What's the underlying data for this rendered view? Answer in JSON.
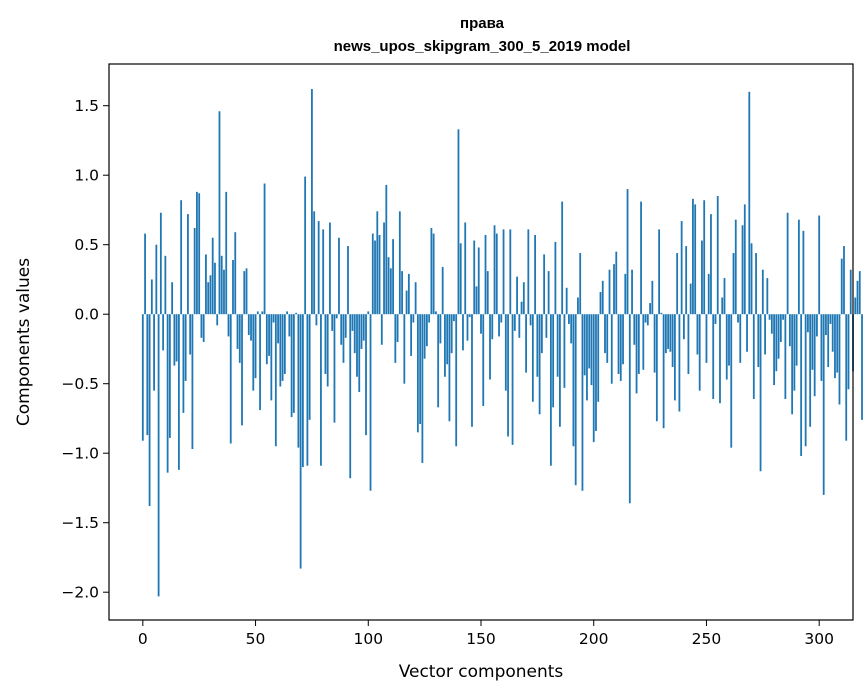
{
  "chart_data": {
    "type": "bar",
    "title": "права",
    "subtitle": "news_upos_skipgram_300_5_2019 model",
    "xlabel": "Vector components",
    "ylabel": "Components values",
    "xlim": [
      -15,
      315
    ],
    "ylim": [
      -2.2,
      1.8
    ],
    "xticks": [
      0,
      50,
      100,
      150,
      200,
      250,
      300
    ],
    "yticks": [
      -2.0,
      -1.5,
      -1.0,
      -0.5,
      0.0,
      0.5,
      1.0,
      1.5
    ],
    "color": "#1f77b4",
    "grid": false,
    "values": [
      -0.91,
      0.58,
      -0.87,
      -1.38,
      0.25,
      -0.55,
      0.5,
      -2.03,
      0.73,
      -0.26,
      0.42,
      -1.14,
      -0.89,
      0.23,
      -0.37,
      -0.34,
      -1.12,
      0.82,
      -0.71,
      -0.48,
      0.72,
      -0.29,
      -0.97,
      0.62,
      0.88,
      0.87,
      -0.17,
      -0.2,
      0.43,
      0.23,
      0.28,
      0.55,
      0.37,
      -0.08,
      1.46,
      0.42,
      0.32,
      0.88,
      -0.16,
      -0.93,
      0.39,
      0.59,
      -0.25,
      -0.35,
      -0.8,
      0.31,
      0.33,
      -0.15,
      -0.19,
      -0.55,
      -0.46,
      0.02,
      -0.69,
      0.02,
      0.94,
      -0.36,
      -0.3,
      -0.62,
      -0.06,
      -0.95,
      -0.21,
      -0.52,
      -0.48,
      -0.43,
      0.02,
      -0.16,
      -0.74,
      -0.71,
      0.01,
      -0.96,
      -1.83,
      -1.1,
      0.99,
      -1.09,
      -0.76,
      1.62,
      0.74,
      -0.08,
      0.67,
      -1.09,
      0.61,
      -0.43,
      -0.52,
      0.66,
      -0.12,
      -0.78,
      -0.03,
      0.55,
      -0.22,
      -0.35,
      -0.17,
      0.49,
      -1.18,
      -0.12,
      -0.28,
      -0.45,
      -0.56,
      -0.25,
      -0.19,
      -0.87,
      0.02,
      -1.27,
      0.58,
      0.53,
      0.74,
      0.57,
      -0.22,
      0.66,
      0.93,
      0.41,
      0.33,
      0.54,
      -0.35,
      -0.2,
      0.74,
      0.31,
      -0.5,
      0.17,
      0.29,
      -0.3,
      -0.06,
      0.23,
      -0.85,
      -0.79,
      -1.07,
      -0.32,
      -0.23,
      -0.06,
      0.62,
      0.58,
      0.02,
      -0.67,
      -0.21,
      0.34,
      -0.45,
      -0.36,
      -0.77,
      -0.28,
      -0.05,
      -0.95,
      1.33,
      0.51,
      -0.26,
      0.66,
      -0.19,
      -0.02,
      -0.81,
      0.53,
      0.2,
      0.48,
      -0.14,
      -0.66,
      0.57,
      0.31,
      -0.47,
      -0.18,
      0.64,
      0.58,
      -0.16,
      -0.06,
      0.61,
      -0.55,
      -0.88,
      0.61,
      -0.94,
      -0.12,
      0.27,
      -0.17,
      0.09,
      0.23,
      -0.42,
      0.61,
      -0.08,
      -0.63,
      0.57,
      -0.45,
      -0.72,
      -0.28,
      0.43,
      -0.17,
      0.31,
      -1.09,
      -0.67,
      0.52,
      -0.45,
      -0.81,
      0.81,
      -0.53,
      0.19,
      -0.07,
      -0.21,
      -0.95,
      -1.23,
      0.12,
      0.44,
      -1.27,
      -0.44,
      -0.62,
      -0.39,
      -0.51,
      -0.92,
      -0.84,
      -0.63,
      0.16,
      0.24,
      -0.28,
      -0.35,
      0.32,
      -0.5,
      0.36,
      0.45,
      -0.43,
      -0.48,
      -0.36,
      0.29,
      0.9,
      -1.36,
      0.32,
      -0.22,
      -0.57,
      -0.43,
      0.81,
      -0.4,
      -0.06,
      -0.08,
      0.08,
      0.24,
      -0.42,
      -0.77,
      0.61,
      0.01,
      -0.82,
      -0.28,
      -0.25,
      -0.27,
      -0.38,
      -0.62,
      0.44,
      -0.7,
      0.67,
      -0.18,
      0.49,
      -0.43,
      0.22,
      0.83,
      0.79,
      -0.29,
      -0.55,
      0.53,
      0.82,
      -0.35,
      0.29,
      0.72,
      -0.61,
      -0.07,
      0.85,
      -0.64,
      0.12,
      0.26,
      -0.47,
      -0.37,
      -0.96,
      0.44,
      0.68,
      -0.06,
      -0.35,
      0.64,
      0.79,
      -0.27,
      1.6,
      0.51,
      -0.61,
      0.44,
      -0.38,
      -1.13,
      0.32,
      -0.29,
      0.26,
      -0.04,
      -0.14,
      -0.51,
      -0.41,
      -0.32,
      -0.2,
      -0.04,
      -0.61,
      0.73,
      -0.23,
      -0.72,
      -0.55,
      -0.37,
      0.68,
      -1.02,
      0.6,
      -0.95,
      -0.13,
      -0.81,
      -0.4,
      -0.59,
      -0.16,
      0.71,
      -0.48,
      -1.3,
      -0.15,
      -0.38,
      -0.07,
      -0.27,
      -0.46,
      -0.42,
      -0.65,
      0.4,
      0.49,
      -0.91,
      -0.54,
      0.32,
      -0.41,
      0.12,
      0.24,
      0.31,
      -0.76
    ]
  }
}
